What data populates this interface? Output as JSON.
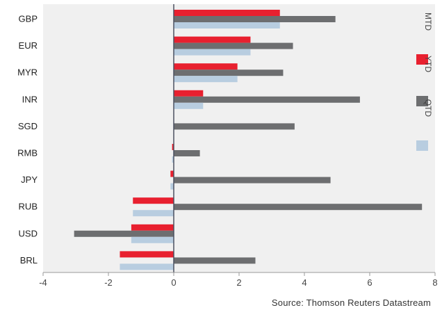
{
  "chart_data": {
    "type": "bar",
    "orientation": "horizontal",
    "categories": [
      "GBP",
      "EUR",
      "MYR",
      "INR",
      "SGD",
      "RMB",
      "JPY",
      "RUB",
      "USD",
      "BRL"
    ],
    "series": [
      {
        "name": "MTD",
        "color": "#e8202f",
        "values": [
          3.25,
          2.35,
          1.95,
          0.9,
          0.0,
          -0.05,
          -0.1,
          -1.25,
          -1.3,
          -1.65
        ]
      },
      {
        "name": "YTD",
        "color": "#6d6e70",
        "values": [
          4.95,
          3.65,
          3.35,
          5.7,
          3.7,
          0.8,
          4.8,
          7.6,
          -3.05,
          2.5
        ]
      },
      {
        "name": "QTD",
        "color": "#b8cde0",
        "values": [
          3.25,
          2.35,
          1.95,
          0.9,
          0.0,
          -0.05,
          -0.1,
          -1.25,
          -1.3,
          -1.65
        ]
      }
    ],
    "xlim": [
      -4,
      8
    ],
    "xticks": [
      -4,
      -2,
      0,
      2,
      4,
      6,
      8
    ],
    "grid": false,
    "legend_position": "right",
    "source": "Source: Thomson Reuters Datastream"
  }
}
